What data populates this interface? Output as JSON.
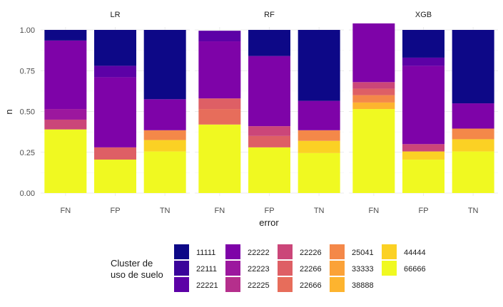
{
  "chart_data": {
    "type": "bar",
    "stacked": true,
    "facets": [
      "LR",
      "RF",
      "XGB"
    ],
    "categories": [
      "FN",
      "FP",
      "TN"
    ],
    "xlabel": "error",
    "ylabel": "n",
    "ylim": [
      0,
      1
    ],
    "yticks": [
      "0.00",
      "0.25",
      "0.50",
      "0.75",
      "1.00"
    ],
    "grid": true,
    "legend_position": "bottom",
    "legend_title_lines": [
      "Cluster de",
      "uso de suelo"
    ],
    "stack_order_bottom_to_top": [
      "66666",
      "44444",
      "38888",
      "33333",
      "25041",
      "22666",
      "22266",
      "22226",
      "22225",
      "22223",
      "22222",
      "22221",
      "22111",
      "11111"
    ],
    "series": [
      {
        "name": "11111",
        "color": "#0D0887"
      },
      {
        "name": "22111",
        "color": "#3A049A"
      },
      {
        "name": "22221",
        "color": "#5C01A6"
      },
      {
        "name": "22222",
        "color": "#7E03A8"
      },
      {
        "name": "22223",
        "color": "#9C179E"
      },
      {
        "name": "22225",
        "color": "#B52F8C"
      },
      {
        "name": "22226",
        "color": "#CB4679"
      },
      {
        "name": "22266",
        "color": "#DE5F65"
      },
      {
        "name": "22666",
        "color": "#E76D5B"
      },
      {
        "name": "25041",
        "color": "#F48849"
      },
      {
        "name": "33333",
        "color": "#FBA238"
      },
      {
        "name": "38888",
        "color": "#FDB42F"
      },
      {
        "name": "44444",
        "color": "#FBD124"
      },
      {
        "name": "66666",
        "color": "#F0F921"
      }
    ],
    "panels": {
      "LR": {
        "FN": {
          "66666": 0.39,
          "22226": 0.06,
          "22223": 0.065,
          "22222": 0.42,
          "11111": 0.065
        },
        "FP": {
          "66666": 0.205,
          "22266": 0.075,
          "22222": 0.43,
          "22221": 0.07,
          "11111": 0.22
        },
        "TN": {
          "66666": 0.255,
          "44444": 0.07,
          "25041": 0.06,
          "22222": 0.19,
          "11111": 0.425
        }
      },
      "RF": {
        "FN": {
          "66666": 0.42,
          "22266": 0.065,
          "22666": 0.095,
          "22222": 0.35,
          "22221": 0.065
        },
        "FP": {
          "66666": 0.28,
          "22266": 0.07,
          "22226": 0.06,
          "22222": 0.43,
          "11111": 0.16
        },
        "TN": {
          "66666": 0.245,
          "44444": 0.075,
          "25041": 0.065,
          "22222": 0.18,
          "11111": 0.435
        }
      },
      "XGB": {
        "FN": {
          "66666": 0.515,
          "38888": 0.04,
          "25041": 0.045,
          "22266": 0.04,
          "22226": 0.04,
          "22222": 0.36
        },
        "FP": {
          "66666": 0.205,
          "44444": 0.05,
          "22226": 0.045,
          "22222": 0.48,
          "22221": 0.05,
          "11111": 0.17
        },
        "TN": {
          "66666": 0.255,
          "44444": 0.075,
          "25041": 0.065,
          "22222": 0.155,
          "11111": 0.45
        }
      }
    }
  }
}
